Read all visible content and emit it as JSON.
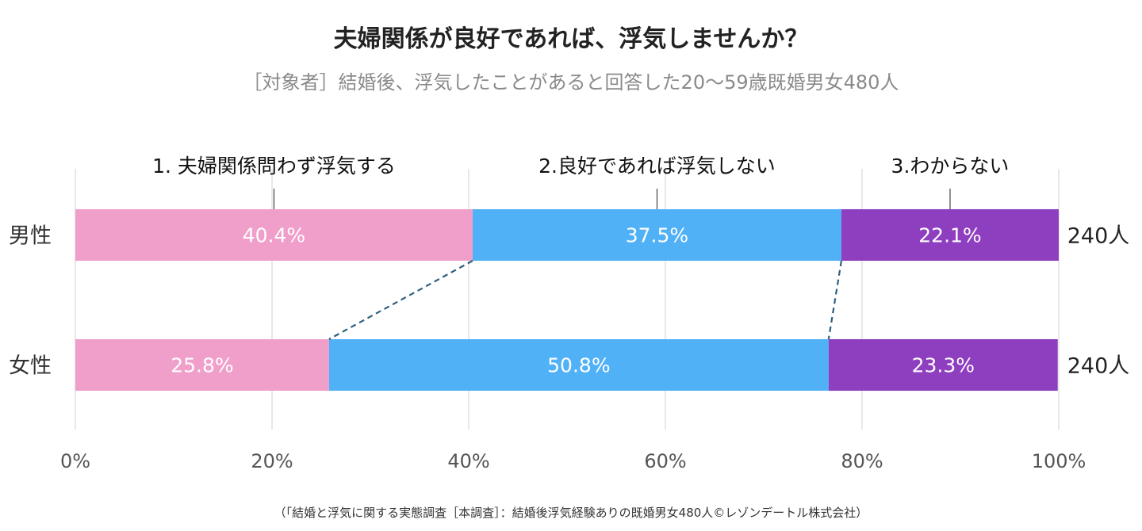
{
  "title": "夫婦関係が良好であれば、浮気しませんか？",
  "subtitle": "［対象者］結婚後、浮気したことがあると回答した20〜59歳既婚男女480人",
  "footer": "（「結婚と浮気に関する実態調査［本調査］：結婚後浮気経験ありの既婚男女480人©レゾンデートル株式会社）",
  "chart_data": {
    "type": "bar",
    "orientation": "horizontal",
    "stacked": true,
    "percent": true,
    "categories": [
      "男性",
      "女性"
    ],
    "series": [
      {
        "name": "1. 夫婦関係問わず浮気する",
        "values": [
          40.4,
          25.8
        ],
        "labels": [
          "40.4%",
          "25.8%"
        ],
        "color": "#f09fcb"
      },
      {
        "name": "2.良好であれば浮気しない",
        "values": [
          37.5,
          50.8
        ],
        "labels": [
          "37.5%",
          "50.8%"
        ],
        "color": "#51b1f7"
      },
      {
        "name": "3.わからない",
        "values": [
          22.1,
          23.3
        ],
        "labels": [
          "22.1%",
          "23.3%"
        ],
        "color": "#8e3fbf"
      }
    ],
    "totals": [
      "240人",
      "240人"
    ],
    "xlim": [
      0,
      100
    ],
    "xticks": [
      0,
      20,
      40,
      60,
      80,
      100
    ],
    "xtick_labels": [
      "0%",
      "20%",
      "40%",
      "60%",
      "80%",
      "100%"
    ],
    "grid": true,
    "legend": "top",
    "connector_color": "#2f5f7f",
    "grid_color": "#d9d9d9"
  }
}
